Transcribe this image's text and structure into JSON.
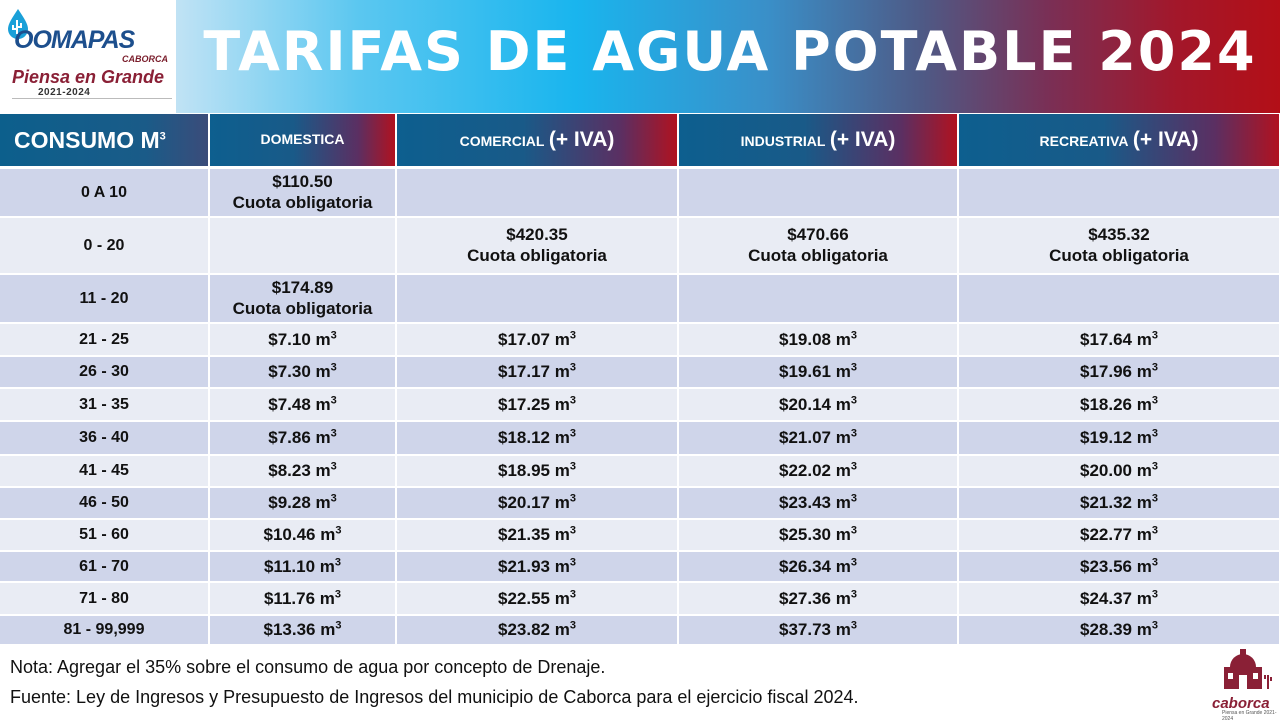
{
  "header": {
    "logo": {
      "brand": "OOMAPAS",
      "sub": "CABORCA",
      "slogan": "Piensa en Grande",
      "years": "2021-2024"
    },
    "title": "TARIFAS DE AGUA POTABLE 2024"
  },
  "table": {
    "headers": {
      "consumo": "CONSUMO M",
      "consumo_sup": "3",
      "domestica": "DOMESTICA",
      "comercial": "COMERCIAL",
      "industrial": "INDUSTRIAL",
      "recreativa": "RECREATIVA",
      "iva": "(+ IVA)"
    },
    "unit": "m",
    "unit_sup": "3",
    "fixed_rows": [
      {
        "range": "0 A 10",
        "domestica": "$110.50",
        "domestica_note": "Cuota obligatoria"
      },
      {
        "range": "0 - 20",
        "comercial": "$420.35",
        "comercial_note": "Cuota obligatoria",
        "industrial": "$470.66",
        "industrial_note": "Cuota obligatoria",
        "recreativa": "$435.32",
        "recreativa_note": "Cuota obligatoria"
      },
      {
        "range": "11 - 20",
        "domestica": "$174.89",
        "domestica_note": "Cuota obligatoria"
      }
    ],
    "rate_rows": [
      {
        "range": "21 - 25",
        "domestica": "$7.10",
        "comercial": "$17.07",
        "industrial": "$19.08",
        "recreativa": "$17.64"
      },
      {
        "range": "26 - 30",
        "domestica": "$7.30",
        "comercial": "$17.17",
        "industrial": "$19.61",
        "recreativa": "$17.96"
      },
      {
        "range": "31 - 35",
        "domestica": "$7.48",
        "comercial": "$17.25",
        "industrial": "$20.14",
        "recreativa": "$18.26"
      },
      {
        "range": "36 - 40",
        "domestica": "$7.86",
        "comercial": "$18.12",
        "industrial": "$21.07",
        "recreativa": "$19.12"
      },
      {
        "range": "41 - 45",
        "domestica": "$8.23",
        "comercial": "$18.95",
        "industrial": "$22.02",
        "recreativa": "$20.00"
      },
      {
        "range": "46 - 50",
        "domestica": "$9.28",
        "comercial": "$20.17",
        "industrial": "$23.43",
        "recreativa": "$21.32"
      },
      {
        "range": "51 - 60",
        "domestica": "$10.46",
        "comercial": "$21.35",
        "industrial": "$25.30",
        "recreativa": "$22.77"
      },
      {
        "range": "61 - 70",
        "domestica": "$11.10",
        "comercial": "$21.93",
        "industrial": "$26.34",
        "recreativa": "$23.56"
      },
      {
        "range": "71 - 80",
        "domestica": "$11.76",
        "comercial": "$22.55",
        "industrial": "$27.36",
        "recreativa": "$24.37"
      },
      {
        "range": "81 - 99,999",
        "domestica": "$13.36",
        "comercial": "$23.82",
        "industrial": "$37.73",
        "recreativa": "$28.39"
      }
    ]
  },
  "footer": {
    "nota": "Nota: Agregar el 35% sobre el consumo de agua por concepto de Drenaje.",
    "fuente": "Fuente: Ley de Ingresos y Presupuesto de Ingresos del municipio de Caborca para el ejercicio fiscal 2024.",
    "seal": {
      "name": "caborca",
      "slogan": "Piensa en Grande",
      "years": "2021-2024"
    }
  },
  "colors": {
    "header_blue": "#0d5f8f",
    "header_red": "#b01220",
    "row_odd": "#cfd5ea",
    "row_even": "#e9ecf4",
    "brand_maroon": "#8a2036"
  },
  "icons": {
    "logo": "water-drop-cactus-icon",
    "seal": "caborca-church-seal-icon"
  }
}
